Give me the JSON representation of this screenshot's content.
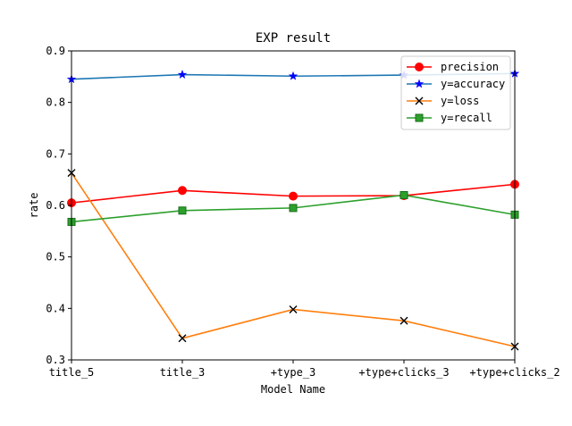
{
  "chart_data": {
    "type": "line",
    "title": "EXP result",
    "xlabel": "Model Name",
    "ylabel": "rate",
    "ylim": [
      0.3,
      0.9
    ],
    "yticks": [
      "0.3",
      "0.4",
      "0.5",
      "0.6",
      "0.7",
      "0.8",
      "0.9"
    ],
    "categories": [
      "title_5",
      "title_3",
      "+type_3",
      "+type+clicks_3",
      "+type+clicks_2"
    ],
    "grid": false,
    "legend_position": "top-right",
    "series": [
      {
        "name": "precision",
        "color": "#ff0000",
        "marker": "circle",
        "values": [
          0.605,
          0.629,
          0.618,
          0.619,
          0.641
        ]
      },
      {
        "name": "y=accuracy",
        "color": "#1f77b4",
        "marker": "star",
        "marker_color": "#0000ff",
        "values": [
          0.845,
          0.854,
          0.851,
          0.853,
          0.856
        ]
      },
      {
        "name": "y=loss",
        "color": "#ff7f0e",
        "marker": "x",
        "marker_color": "#000000",
        "values": [
          0.663,
          0.342,
          0.398,
          0.376,
          0.326
        ]
      },
      {
        "name": "y=recall",
        "color": "#2ca02c",
        "marker": "square",
        "marker_color": "#2ca02c",
        "values": [
          0.568,
          0.59,
          0.595,
          0.62,
          0.582
        ]
      }
    ]
  }
}
